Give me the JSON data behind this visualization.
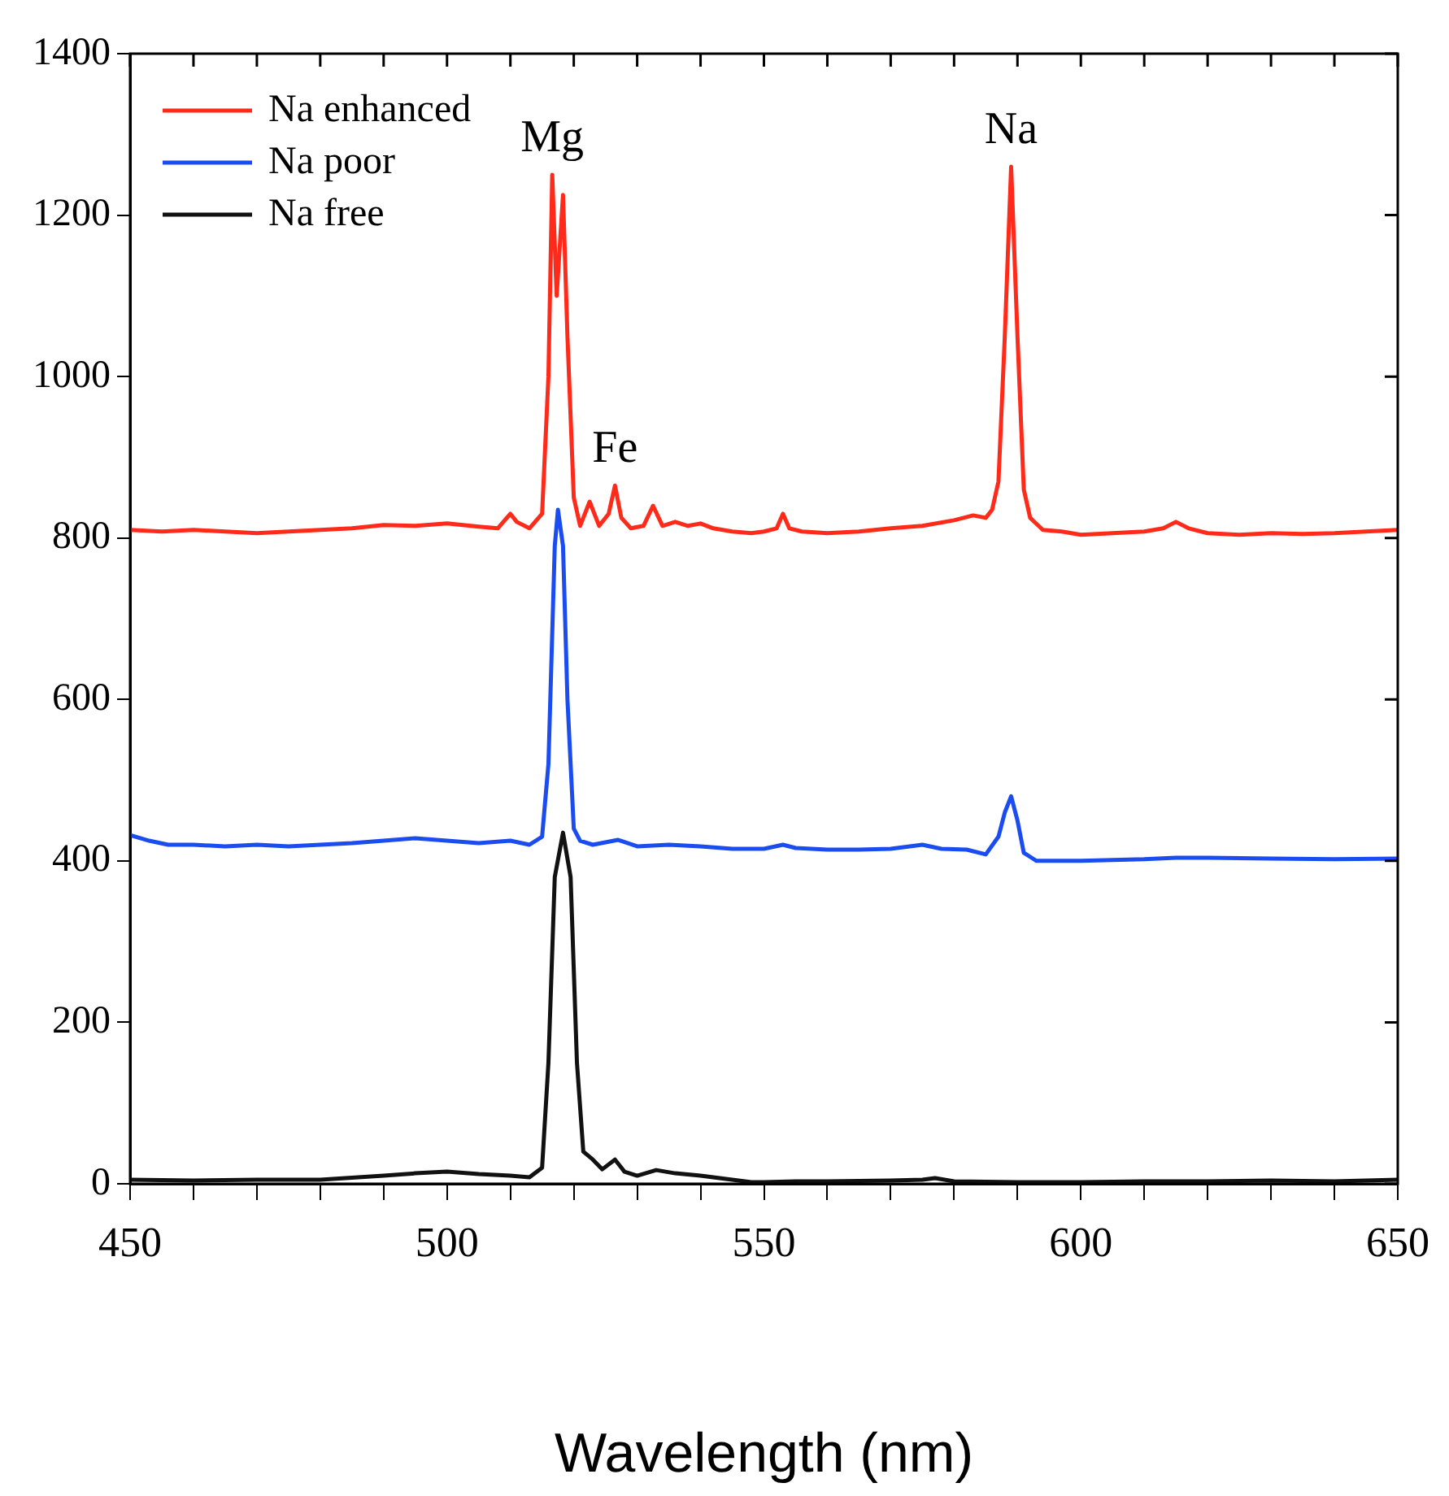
{
  "chart_data": {
    "type": "line",
    "xlabel": "Wavelength (nm)",
    "xlim": [
      450,
      650
    ],
    "ylim": [
      0,
      1400
    ],
    "xticks": [
      450,
      {
        "value": 460,
        "label": null
      },
      {
        "value": 470,
        "label": null
      },
      {
        "value": 480,
        "label": null
      },
      {
        "value": 490,
        "label": null
      },
      500,
      {
        "value": 510,
        "label": null
      },
      {
        "value": 520,
        "label": null
      },
      {
        "value": 530,
        "label": null
      },
      {
        "value": 540,
        "label": null
      },
      550,
      {
        "value": 560,
        "label": null
      },
      {
        "value": 570,
        "label": null
      },
      {
        "value": 580,
        "label": null
      },
      {
        "value": 590,
        "label": null
      },
      600,
      {
        "value": 610,
        "label": null
      },
      {
        "value": 620,
        "label": null
      },
      {
        "value": 630,
        "label": null
      },
      {
        "value": 640,
        "label": null
      },
      650
    ],
    "yticks": [
      0,
      200,
      400,
      600,
      800,
      1000,
      1200,
      1400
    ],
    "grid": false,
    "legend": "top left",
    "marker": "none",
    "line_style": "solid",
    "annotations": [
      {
        "text": "Mg",
        "x": 516.6,
        "y": 1250
      },
      {
        "text": "Fe",
        "x": 526.5,
        "y": 865
      },
      {
        "text": "Na",
        "x": 589,
        "y": 1260
      }
    ],
    "series": [
      {
        "name": "Na enhanced",
        "color": "#ff2a1a",
        "x": [
          450,
          455,
          460,
          465,
          470,
          475,
          480,
          485,
          490,
          495,
          500,
          505,
          508,
          510,
          511,
          513,
          515,
          516,
          516.6,
          517.3,
          518.3,
          519,
          520,
          521,
          522.5,
          524,
          525.5,
          526.5,
          527.5,
          529,
          531,
          532.5,
          534,
          536,
          538,
          540,
          542,
          545,
          548,
          550,
          552,
          553,
          554,
          556,
          560,
          565,
          570,
          575,
          580,
          583,
          585,
          586,
          587,
          588,
          589,
          590,
          591,
          592,
          594,
          597,
          600,
          605,
          610,
          613,
          615,
          617,
          620,
          625,
          630,
          635,
          640,
          645,
          650
        ],
        "values": [
          810,
          808,
          810,
          808,
          806,
          808,
          810,
          812,
          816,
          815,
          818,
          814,
          812,
          830,
          820,
          812,
          830,
          1000,
          1250,
          1100,
          1225,
          1050,
          850,
          815,
          845,
          815,
          830,
          865,
          825,
          812,
          815,
          840,
          815,
          820,
          815,
          818,
          812,
          808,
          806,
          808,
          812,
          830,
          812,
          808,
          806,
          808,
          812,
          815,
          822,
          828,
          825,
          835,
          870,
          1050,
          1260,
          1050,
          860,
          825,
          810,
          808,
          804,
          806,
          808,
          812,
          820,
          812,
          806,
          804,
          806,
          805,
          806,
          808,
          810
        ]
      },
      {
        "name": "Na poor",
        "color": "#1a4cf0",
        "x": [
          450,
          453,
          456,
          460,
          465,
          470,
          475,
          480,
          485,
          490,
          495,
          500,
          505,
          510,
          513,
          515,
          516,
          517,
          517.5,
          518.3,
          519,
          520,
          521,
          523,
          527,
          530,
          535,
          540,
          545,
          550,
          553,
          555,
          560,
          565,
          570,
          575,
          578,
          582,
          585,
          587,
          588,
          589,
          590,
          591,
          593,
          600,
          610,
          615,
          620,
          630,
          640,
          650
        ],
        "values": [
          432,
          425,
          420,
          420,
          418,
          420,
          418,
          420,
          422,
          425,
          428,
          425,
          422,
          425,
          420,
          430,
          520,
          790,
          835,
          790,
          600,
          440,
          425,
          420,
          426,
          418,
          420,
          418,
          415,
          415,
          420,
          416,
          414,
          414,
          415,
          420,
          415,
          414,
          408,
          430,
          460,
          480,
          450,
          410,
          400,
          400,
          402,
          404,
          404,
          403,
          402,
          403
        ]
      },
      {
        "name": "Na free",
        "color": "#111111",
        "x": [
          450,
          460,
          470,
          480,
          486,
          490,
          495,
          500,
          505,
          510,
          513,
          515,
          516,
          517,
          518.3,
          519.5,
          520.5,
          521.5,
          523,
          524.5,
          526.5,
          528,
          530,
          533,
          536,
          540,
          545,
          548,
          550,
          555,
          560,
          570,
          575,
          577,
          580,
          590,
          600,
          610,
          620,
          630,
          640,
          650
        ],
        "values": [
          5,
          4,
          5,
          5,
          8,
          10,
          13,
          15,
          12,
          10,
          8,
          20,
          150,
          380,
          435,
          380,
          150,
          40,
          30,
          18,
          30,
          15,
          10,
          17,
          13,
          10,
          5,
          2,
          2,
          3,
          3,
          4,
          5,
          7,
          3,
          2,
          2,
          3,
          3,
          4,
          3,
          5
        ]
      }
    ]
  }
}
